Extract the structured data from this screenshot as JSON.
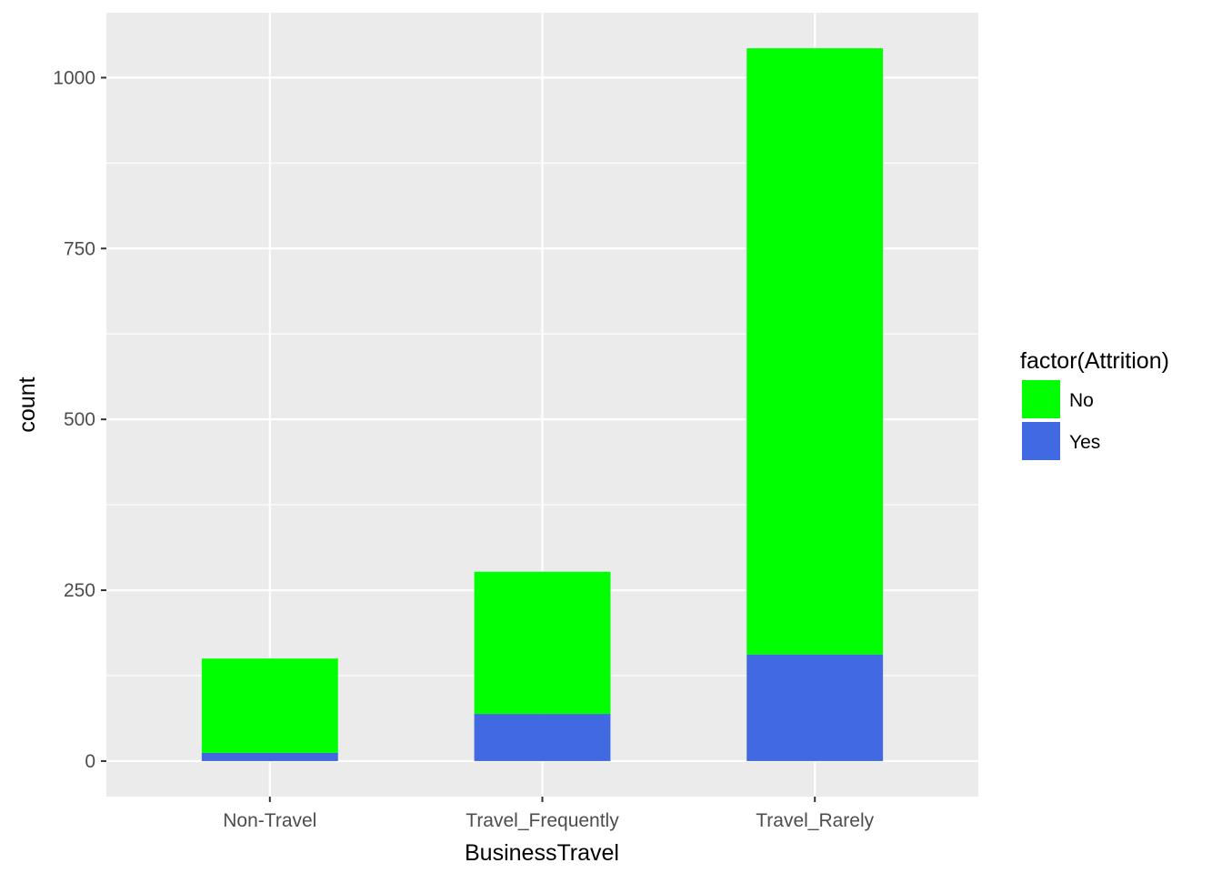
{
  "chart_data": {
    "type": "bar",
    "stacked": true,
    "categories": [
      "Non-Travel",
      "Travel_Frequently",
      "Travel_Rarely"
    ],
    "series": [
      {
        "name": "No",
        "values": [
          138,
          208,
          887
        ]
      },
      {
        "name": "Yes",
        "values": [
          12,
          69,
          156
        ]
      }
    ],
    "xlabel": "BusinessTravel",
    "ylabel": "count",
    "ylim": [
      -52,
      1095
    ],
    "yticks": [
      0,
      250,
      500,
      750,
      1000
    ],
    "grid": true,
    "legend": {
      "title": "factor(Attrition)",
      "position": "right"
    },
    "colors": {
      "No": "#00FF00",
      "Yes": "#4169E1",
      "panel_background": "#EBEBEB",
      "grid_line": "#FFFFFF"
    }
  }
}
